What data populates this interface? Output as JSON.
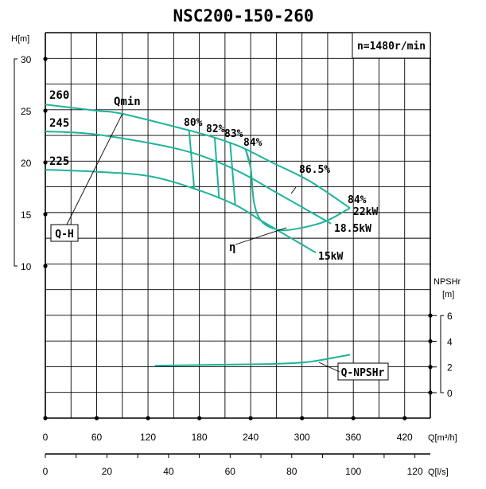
{
  "chart_data": {
    "type": "line",
    "title": "NSC200-150-260",
    "speed_label": "n=1480r/min",
    "curve_color": "#1fb39b",
    "grid": true,
    "x_axis": {
      "label": "Q[m³/h]",
      "range": [
        0,
        450
      ],
      "ticks": [
        0,
        60,
        120,
        180,
        240,
        300,
        360,
        420
      ]
    },
    "x2_axis": {
      "label": "Q[l/s]",
      "range": [
        0,
        125
      ],
      "ticks": [
        0,
        20,
        40,
        60,
        80,
        100,
        120
      ]
    },
    "y_axis": {
      "label": "H[m]",
      "range": [
        10,
        30
      ],
      "ticks": [
        10,
        15,
        20,
        25,
        30
      ]
    },
    "y2_axis": {
      "label_top": "NPSHr",
      "label_unit": "[m]",
      "range": [
        0,
        6
      ],
      "ticks": [
        0,
        2,
        4,
        6
      ]
    },
    "series": [
      {
        "name": "260",
        "kind": "Q-H",
        "x": [
          0,
          60,
          90,
          168,
          198,
          216,
          234,
          265,
          309,
          356
        ],
        "y": [
          25.6,
          25.0,
          24.7,
          23.1,
          22.4,
          21.9,
          21.3,
          20.0,
          18.2,
          15.6
        ]
      },
      {
        "name": "245",
        "kind": "Q-H",
        "x": [
          0,
          60,
          150,
          200,
          236,
          272,
          334
        ],
        "y": [
          23.0,
          22.7,
          21.4,
          20.1,
          18.7,
          17.0,
          14.1
        ]
      },
      {
        "name": "225",
        "kind": "Q-H",
        "x": [
          0,
          60,
          120,
          173,
          222,
          254,
          316
        ],
        "y": [
          19.3,
          19.1,
          18.7,
          17.5,
          15.9,
          14.3,
          11.3
        ]
      },
      {
        "name": "η",
        "kind": "efficiency-envelope",
        "x": [
          234,
          240,
          244,
          253,
          272,
          294,
          327,
          356
        ],
        "y": [
          21.3,
          19.5,
          16.1,
          14.3,
          13.5,
          13.6,
          14.3,
          15.6
        ]
      },
      {
        "name": "Q-NPSHr",
        "kind": "NPSHr",
        "x": [
          128,
          180,
          236,
          272,
          309,
          356
        ],
        "y": [
          2.1,
          2.15,
          2.2,
          2.25,
          2.4,
          2.95
        ]
      }
    ],
    "iso_efficiency": [
      {
        "label": "80%",
        "x": [
          168,
          174
        ],
        "y": [
          23.1,
          17.5
        ]
      },
      {
        "label": "82%",
        "x": [
          198,
          203
        ],
        "y": [
          22.4,
          16.6
        ]
      },
      {
        "label": "83%",
        "x": [
          216,
          222
        ],
        "y": [
          21.9,
          15.9
        ]
      },
      {
        "label": "84%",
        "x": [
          234,
          240
        ],
        "y": [
          21.3,
          19.5
        ]
      }
    ],
    "annotations": {
      "diameters": [
        "260",
        "245",
        "225"
      ],
      "qmin": "Qmin",
      "qh_box": "Q-H",
      "eff_max": "86.5%",
      "eff_end": "84%",
      "power": [
        "22kW",
        "18.5kW",
        "15kW"
      ],
      "eta": "η",
      "npsh_box": "Q-NPSHr"
    }
  }
}
